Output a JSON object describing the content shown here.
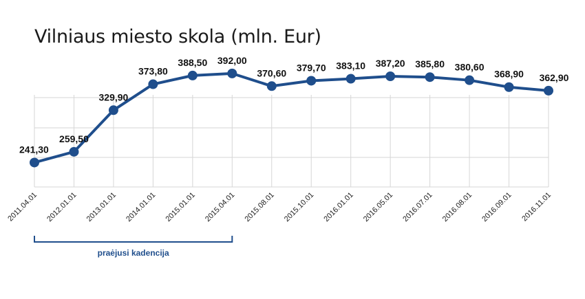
{
  "chart_data": {
    "type": "line",
    "title": "Vilniaus miesto skola (mln. Eur)",
    "xlabel": "",
    "ylabel": "",
    "categories": [
      "2011.04.01",
      "2012.01.01",
      "2013.01.01",
      "2014.01.01",
      "2015.01.01",
      "2015.04.01",
      "2015.08.01",
      "2015.10.01",
      "2016.01.01",
      "2016.05.01",
      "2016.07.01",
      "2016.08.01",
      "2016.09.01",
      "2016.11.01"
    ],
    "values": [
      241.3,
      259.5,
      329.9,
      373.8,
      388.5,
      392.0,
      370.6,
      379.7,
      383.1,
      387.2,
      385.8,
      380.6,
      368.9,
      362.9
    ],
    "data_labels": [
      "241,30",
      "259,50",
      "329,90",
      "373,80",
      "388,50",
      "392,00",
      "370,60",
      "379,70",
      "383,10",
      "387,20",
      "385,80",
      "380,60",
      "368,90",
      "362,90"
    ],
    "ylim": [
      0,
      400
    ],
    "grid": true,
    "color": "#1f4e8c",
    "bracket": {
      "label": "praėjusi kadencija",
      "from_index": 0,
      "to_index": 5
    }
  }
}
